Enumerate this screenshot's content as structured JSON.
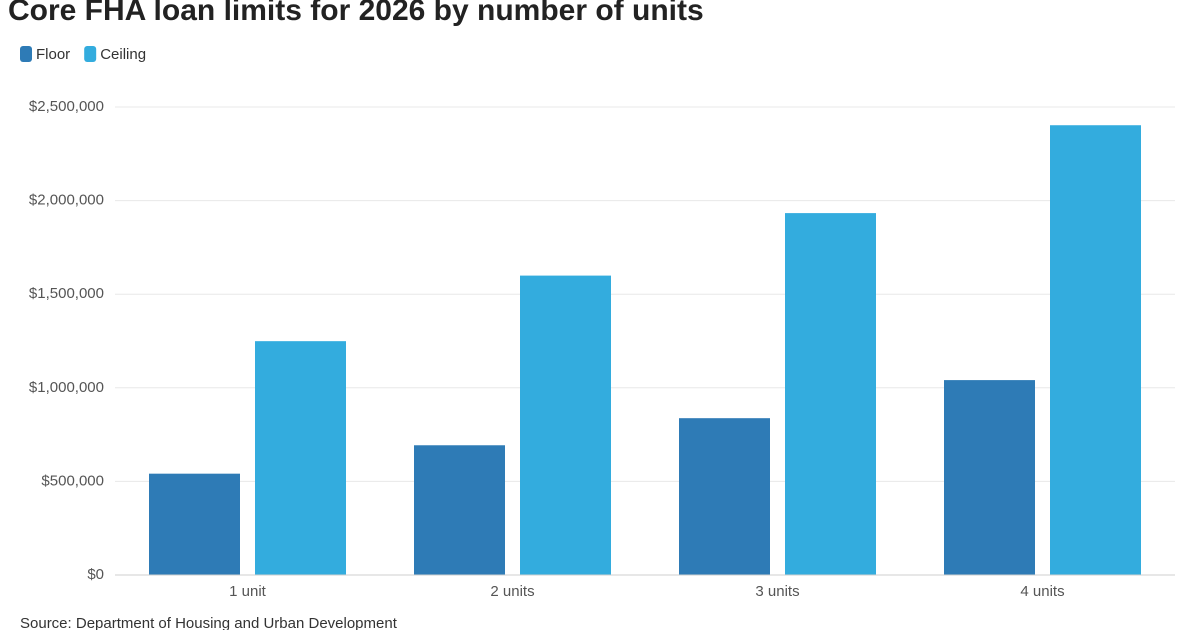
{
  "chart_data": {
    "type": "bar",
    "title": "Core FHA loan limits for 2026 by number of units",
    "source": "Source: Department of Housing and Urban Development",
    "categories": [
      "1 unit",
      "2 units",
      "3 units",
      "4 units"
    ],
    "series": [
      {
        "name": "Floor",
        "color": "#2e7bb6",
        "values": [
          541287,
          693050,
          837700,
          1041125
        ]
      },
      {
        "name": "Ceiling",
        "color": "#33acde",
        "values": [
          1249125,
          1599375,
          1933200,
          2402625
        ]
      }
    ],
    "ylim": [
      0,
      2500000
    ],
    "yticks": [
      {
        "value": 0,
        "label": "$0"
      },
      {
        "value": 500000,
        "label": "$500,000"
      },
      {
        "value": 1000000,
        "label": "$1,000,000"
      },
      {
        "value": 1500000,
        "label": "$1,500,000"
      },
      {
        "value": 2000000,
        "label": "$2,000,000"
      },
      {
        "value": 2500000,
        "label": "$2,500,000"
      }
    ],
    "grid": true
  }
}
